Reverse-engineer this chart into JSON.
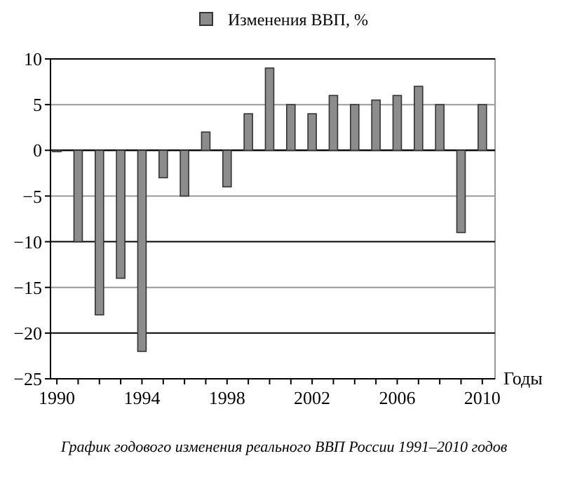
{
  "chart_data": {
    "type": "bar",
    "xlabel": "Годы",
    "annotations": [
      "График годового изменения реального ВВП России 1991–2010 годов"
    ],
    "x": [
      1990,
      1991,
      1992,
      1993,
      1994,
      1995,
      1996,
      1997,
      1998,
      1999,
      2000,
      2001,
      2002,
      2003,
      2004,
      2005,
      2006,
      2007,
      2008,
      2009,
      2010
    ],
    "series": [
      {
        "name": "Изменения ВВП, %",
        "color": "#8c8c8c",
        "values": [
          0,
          -10,
          -18,
          -14,
          -22,
          -3,
          -5,
          2,
          -4,
          4,
          9,
          5,
          4,
          6,
          5,
          5.5,
          6,
          7,
          5,
          -9,
          5
        ]
      }
    ],
    "xlim": [
      1989.7,
      2010.6
    ],
    "xticks": [
      1990,
      {
        "value": 1991,
        "label": null
      },
      {
        "value": 1992,
        "label": null
      },
      {
        "value": 1993,
        "label": null
      },
      1994,
      {
        "value": 1995,
        "label": null
      },
      {
        "value": 1996,
        "label": null
      },
      {
        "value": 1997,
        "label": null
      },
      1998,
      {
        "value": 1999,
        "label": null
      },
      {
        "value": 2000,
        "label": null
      },
      {
        "value": 2001,
        "label": null
      },
      2002,
      {
        "value": 2003,
        "label": null
      },
      {
        "value": 2004,
        "label": null
      },
      {
        "value": 2005,
        "label": null
      },
      2006,
      {
        "value": 2007,
        "label": null
      },
      {
        "value": 2008,
        "label": null
      },
      {
        "value": 2009,
        "label": null
      },
      2010
    ],
    "ylim": [
      -25,
      10
    ],
    "yticks": [
      -25,
      -20,
      -15,
      -10,
      -5,
      0,
      5,
      10
    ],
    "grid": "y",
    "legend": "top"
  }
}
